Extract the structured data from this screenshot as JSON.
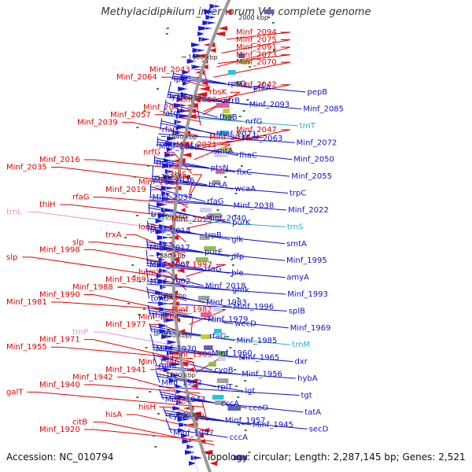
{
  "title": "Methylacidiphilum infernorum V4, complete genome",
  "footer": {
    "accession": "Accession: NC_010794",
    "topology": "Topology: circular; Length: 2,287,145 bp; Genes: 2,521"
  },
  "colors": {
    "reverse_labels": "#e00000",
    "forward_labels": "#1010c8",
    "rna_forward": "#20b0c8",
    "rna_reverse": "#e890e0",
    "backbone": "#9a9a9a",
    "gene_green": "#2a8a2a"
  },
  "ticks": [
    "2000 kbp",
    "1980 kbp",
    "1960 kbp",
    "1940 kbp",
    "1920 kbp",
    "1900 kbp",
    "1880 kbp",
    "1860 kbp",
    "1840 kbp",
    "1820 kbp",
    "1800 kbp"
  ],
  "left_labels": [
    {
      "text": "Minf_2094",
      "type": "gene"
    },
    {
      "text": "Minf_2075",
      "type": "gene"
    },
    {
      "text": "Minf_2091",
      "type": "gene"
    },
    {
      "text": "Minf_2073",
      "type": "gene"
    },
    {
      "text": "Minf_2070",
      "type": "gene"
    },
    {
      "text": "Minf_2043",
      "type": "gene"
    },
    {
      "text": "Minf_2064",
      "type": "gene"
    },
    {
      "text": "Minf_2042",
      "type": "gene"
    },
    {
      "text": "rbsK",
      "type": "gene"
    },
    {
      "text": "Minf_2060",
      "type": "gene"
    },
    {
      "text": "Minf_2041",
      "type": "gene"
    },
    {
      "text": "Minf_2057",
      "type": "gene"
    },
    {
      "text": "Minf_2039",
      "type": "gene"
    },
    {
      "text": "Minf_2047",
      "type": "gene"
    },
    {
      "text": "Minf_2034",
      "type": "gene"
    },
    {
      "text": "Minf_2021",
      "type": "gene"
    },
    {
      "text": "nrfG",
      "type": "gene"
    },
    {
      "text": "Minf_2016",
      "type": "gene"
    },
    {
      "text": "Minf_2035",
      "type": "gene"
    },
    {
      "text": "thiS",
      "type": "gene"
    },
    {
      "text": "Minf_2011",
      "type": "gene"
    },
    {
      "text": "Minf_2019",
      "type": "gene"
    },
    {
      "text": "rfaG",
      "type": "gene"
    },
    {
      "text": "thiH",
      "type": "gene"
    },
    {
      "text": "trnL",
      "type": "rna"
    },
    {
      "text": "Minf_2015",
      "type": "gene"
    },
    {
      "text": "lonB",
      "type": "gene"
    },
    {
      "text": "trxA",
      "type": "gene"
    },
    {
      "text": "slp",
      "type": "gene"
    },
    {
      "text": "Minf_1998",
      "type": "gene"
    },
    {
      "text": "slp",
      "type": "gene"
    },
    {
      "text": "Minf_1997",
      "type": "gene"
    },
    {
      "text": "hemX",
      "type": "gene"
    },
    {
      "text": "Minf_1989",
      "type": "gene"
    },
    {
      "text": "Minf_1988",
      "type": "gene"
    },
    {
      "text": "Minf_1990",
      "type": "gene"
    },
    {
      "text": "Minf_1981",
      "type": "gene"
    },
    {
      "text": "Minf_1982",
      "type": "gene"
    },
    {
      "text": "Minf_1964",
      "type": "gene"
    },
    {
      "text": "Minf_1977",
      "type": "gene"
    },
    {
      "text": "trnP",
      "type": "rna"
    },
    {
      "text": "Minf_1971",
      "type": "gene"
    },
    {
      "text": "Minf_1955",
      "type": "gene"
    },
    {
      "text": "Minf_1963",
      "type": "gene"
    },
    {
      "text": "Minf_1946",
      "type": "gene"
    },
    {
      "text": "Minf_1941",
      "type": "gene"
    },
    {
      "text": "Minf_1942",
      "type": "gene"
    },
    {
      "text": "Minf_1940",
      "type": "gene"
    },
    {
      "text": "galT",
      "type": "gene"
    },
    {
      "text": "cirA",
      "type": "gene"
    },
    {
      "text": "hisH",
      "type": "gene"
    },
    {
      "text": "hisA",
      "type": "gene"
    },
    {
      "text": "citB",
      "type": "gene"
    },
    {
      "text": "Minf_1920",
      "type": "gene"
    }
  ],
  "right_labels": [
    {
      "text": "lpxC",
      "type": "gene"
    },
    {
      "text": "rpsO",
      "type": "gene"
    },
    {
      "text": "pfkA",
      "type": "gene"
    },
    {
      "text": "pepB",
      "type": "gene"
    },
    {
      "text": "lysR",
      "type": "gene"
    },
    {
      "text": "ntrB",
      "type": "gene"
    },
    {
      "text": "Minf_2093",
      "type": "gene"
    },
    {
      "text": "Minf_2085",
      "type": "gene"
    },
    {
      "text": "atoC",
      "type": "gene"
    },
    {
      "text": "fhaB",
      "type": "gene"
    },
    {
      "text": "nrfG",
      "type": "gene"
    },
    {
      "text": "trnT",
      "type": "rna"
    },
    {
      "text": "rfaG",
      "type": "gene"
    },
    {
      "text": "Minf_2071",
      "type": "gene"
    },
    {
      "text": "Minf_2063",
      "type": "gene"
    },
    {
      "text": "Minf_2072",
      "type": "gene"
    },
    {
      "text": "Minf_2058",
      "type": "gene"
    },
    {
      "text": "smtA",
      "type": "gene"
    },
    {
      "text": "fhaC",
      "type": "gene"
    },
    {
      "text": "Minf_2050",
      "type": "gene"
    },
    {
      "text": "fhaB",
      "type": "gene"
    },
    {
      "text": "ptsN",
      "type": "gene"
    },
    {
      "text": "flxC",
      "type": "gene"
    },
    {
      "text": "Minf_2055",
      "type": "gene"
    },
    {
      "text": "Minf_2036",
      "type": "gene"
    },
    {
      "text": "bcsA",
      "type": "gene"
    },
    {
      "text": "wcaA",
      "type": "gene"
    },
    {
      "text": "trpC",
      "type": "gene"
    },
    {
      "text": "Minf_2037",
      "type": "gene"
    },
    {
      "text": "rfaG",
      "type": "gene"
    },
    {
      "text": "Minf_2038",
      "type": "gene"
    },
    {
      "text": "Minf_2022",
      "type": "gene"
    },
    {
      "text": "trpF",
      "type": "gene"
    },
    {
      "text": "Minf_2040",
      "type": "gene"
    },
    {
      "text": "purK",
      "type": "gene"
    },
    {
      "text": "trnS",
      "type": "rna"
    },
    {
      "text": "Minf_2014",
      "type": "gene"
    },
    {
      "text": "trpB",
      "type": "gene"
    },
    {
      "text": "glk",
      "type": "gene"
    },
    {
      "text": "smtA",
      "type": "gene"
    },
    {
      "text": "Minf_2017",
      "type": "gene"
    },
    {
      "text": "purE",
      "type": "gene"
    },
    {
      "text": "dfp",
      "type": "gene"
    },
    {
      "text": "Minf_1995",
      "type": "gene"
    },
    {
      "text": "Minf_2007",
      "type": "gene"
    },
    {
      "text": "rfaG",
      "type": "gene"
    },
    {
      "text": "ble",
      "type": "gene"
    },
    {
      "text": "amyA",
      "type": "gene"
    },
    {
      "text": "Minf_2002",
      "type": "gene"
    },
    {
      "text": "Minf_2018",
      "type": "gene"
    },
    {
      "text": "gmk",
      "type": "gene"
    },
    {
      "text": "Minf_1993",
      "type": "gene"
    },
    {
      "text": "tonB",
      "type": "gene"
    },
    {
      "text": "Minf_1983",
      "type": "gene"
    },
    {
      "text": "Minf_1996",
      "type": "gene"
    },
    {
      "text": "splB",
      "type": "gene"
    },
    {
      "text": "thiS",
      "type": "gene"
    },
    {
      "text": "Minf_1979",
      "type": "gene"
    },
    {
      "text": "wecD",
      "type": "gene"
    },
    {
      "text": "Minf_1969",
      "type": "gene"
    },
    {
      "text": "leuA",
      "type": "gene"
    },
    {
      "text": "rfaG",
      "type": "gene"
    },
    {
      "text": "Minf_1985",
      "type": "gene"
    },
    {
      "text": "trnM",
      "type": "rna"
    },
    {
      "text": "Minf_1970",
      "type": "gene"
    },
    {
      "text": "Minf_1960",
      "type": "gene"
    },
    {
      "text": "Minf_1965",
      "type": "gene"
    },
    {
      "text": "dxr",
      "type": "gene"
    },
    {
      "text": "rpml",
      "type": "gene"
    },
    {
      "text": "cyoB",
      "type": "gene"
    },
    {
      "text": "Minf_1956",
      "type": "gene"
    },
    {
      "text": "hybA",
      "type": "gene"
    },
    {
      "text": "Minf_1962",
      "type": "gene"
    },
    {
      "text": "rplT",
      "type": "gene"
    },
    {
      "text": "lgt",
      "type": "gene"
    },
    {
      "text": "tgt",
      "type": "gene"
    },
    {
      "text": "Minf_1943",
      "type": "gene"
    },
    {
      "text": "cccA",
      "type": "gene"
    },
    {
      "text": "ccoO",
      "type": "gene"
    },
    {
      "text": "tatA",
      "type": "gene"
    },
    {
      "text": "cyoA",
      "type": "gene"
    },
    {
      "text": "Minf_1957",
      "type": "gene"
    },
    {
      "text": "Minf_1945",
      "type": "gene"
    },
    {
      "text": "secD",
      "type": "gene"
    },
    {
      "text": "Minf_1947",
      "type": "gene"
    },
    {
      "text": "cccA",
      "type": "gene"
    }
  ]
}
